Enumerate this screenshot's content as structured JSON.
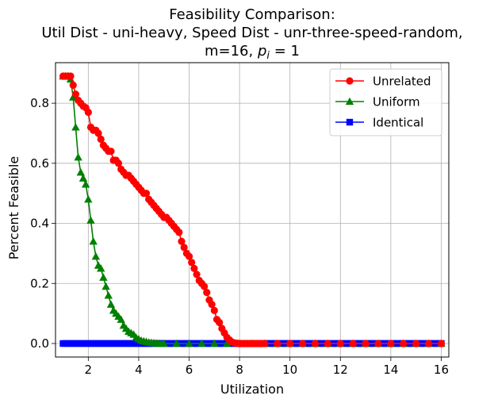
{
  "title_lines": [
    "Feasibility Comparison:",
    "Util Dist - uni-heavy, Speed Dist - unr-three-speed-random,",
    "m=16, "
  ],
  "title_pi_symbol": "p",
  "title_pi_subscript": "i",
  "title_pi_tail": " = 1",
  "chart_data": {
    "type": "line",
    "xlabel": "Utilization",
    "ylabel": "Percent Feasible",
    "xlim": [
      0.7,
      16.3
    ],
    "ylim": [
      -0.045,
      0.935
    ],
    "xticks": [
      2,
      4,
      6,
      8,
      10,
      12,
      14,
      16
    ],
    "xtick_labels": [
      "2",
      "4",
      "6",
      "8",
      "10",
      "12",
      "14",
      "16"
    ],
    "yticks": [
      0.0,
      0.2,
      0.4,
      0.6,
      0.8
    ],
    "ytick_labels": [
      "0.0",
      "0.2",
      "0.4",
      "0.6",
      "0.8"
    ],
    "grid": true,
    "legend_position": "upper right",
    "series": [
      {
        "name": "Unrelated",
        "color": "#ff0000",
        "marker": "circle",
        "x": [
          1.0,
          1.1,
          1.2,
          1.3,
          1.4,
          1.5,
          1.6,
          1.7,
          1.8,
          1.9,
          2.0,
          2.1,
          2.2,
          2.3,
          2.4,
          2.5,
          2.6,
          2.7,
          2.8,
          2.9,
          3.0,
          3.1,
          3.2,
          3.3,
          3.4,
          3.5,
          3.6,
          3.7,
          3.8,
          3.9,
          4.0,
          4.1,
          4.2,
          4.3,
          4.4,
          4.5,
          4.6,
          4.7,
          4.8,
          4.9,
          5.0,
          5.1,
          5.2,
          5.3,
          5.4,
          5.5,
          5.6,
          5.7,
          5.8,
          5.9,
          6.0,
          6.1,
          6.2,
          6.3,
          6.4,
          6.5,
          6.6,
          6.7,
          6.8,
          6.9,
          7.0,
          7.1,
          7.2,
          7.3,
          7.4,
          7.5,
          7.6,
          7.7,
          7.8,
          7.9,
          8.0,
          8.1,
          8.2,
          8.3,
          8.4,
          8.5,
          8.6,
          8.7,
          8.8,
          8.9,
          9.0,
          9.5,
          10.0,
          10.5,
          11.0,
          11.5,
          12.0,
          12.5,
          13.0,
          13.5,
          14.0,
          14.5,
          15.0,
          15.5,
          16.0
        ],
        "y": [
          0.89,
          0.89,
          0.89,
          0.89,
          0.86,
          0.83,
          0.81,
          0.8,
          0.79,
          0.785,
          0.77,
          0.72,
          0.71,
          0.71,
          0.7,
          0.68,
          0.66,
          0.65,
          0.64,
          0.64,
          0.61,
          0.61,
          0.6,
          0.58,
          0.57,
          0.56,
          0.56,
          0.55,
          0.54,
          0.53,
          0.52,
          0.51,
          0.5,
          0.5,
          0.48,
          0.47,
          0.46,
          0.45,
          0.44,
          0.43,
          0.42,
          0.42,
          0.41,
          0.4,
          0.39,
          0.38,
          0.37,
          0.34,
          0.32,
          0.3,
          0.29,
          0.27,
          0.25,
          0.23,
          0.21,
          0.2,
          0.19,
          0.17,
          0.145,
          0.13,
          0.11,
          0.08,
          0.07,
          0.05,
          0.035,
          0.02,
          0.012,
          0.005,
          0.002,
          0.001,
          0.0,
          0.0,
          0.0,
          0.0,
          0.0,
          0.0,
          0.0,
          0.0,
          0.0,
          0.0,
          0.0,
          0.0,
          0.0,
          0.0,
          0.0,
          0.0,
          0.0,
          0.0,
          0.0,
          0.0,
          0.0,
          0.0,
          0.0,
          0.0,
          0.0
        ]
      },
      {
        "name": "Uniform",
        "color": "#008000",
        "marker": "triangle",
        "x": [
          1.0,
          1.1,
          1.2,
          1.3,
          1.4,
          1.5,
          1.6,
          1.7,
          1.8,
          1.9,
          2.0,
          2.1,
          2.2,
          2.3,
          2.4,
          2.5,
          2.6,
          2.7,
          2.8,
          2.9,
          3.0,
          3.1,
          3.2,
          3.3,
          3.4,
          3.5,
          3.6,
          3.7,
          3.8,
          3.9,
          4.0,
          4.1,
          4.2,
          4.3,
          4.4,
          4.5,
          4.6,
          4.7,
          4.8,
          4.9,
          5.0,
          5.5,
          6.0,
          6.5,
          7.0,
          7.5,
          8.0,
          8.5,
          9.0,
          9.5,
          10.0,
          10.5,
          11.0,
          11.5,
          12.0,
          12.5,
          13.0,
          13.5,
          14.0,
          14.5,
          15.0,
          15.5,
          16.0
        ],
        "y": [
          0.89,
          0.89,
          0.89,
          0.88,
          0.82,
          0.72,
          0.62,
          0.57,
          0.55,
          0.53,
          0.48,
          0.41,
          0.34,
          0.29,
          0.26,
          0.25,
          0.22,
          0.19,
          0.16,
          0.13,
          0.11,
          0.1,
          0.09,
          0.08,
          0.06,
          0.05,
          0.04,
          0.035,
          0.03,
          0.02,
          0.015,
          0.01,
          0.008,
          0.006,
          0.004,
          0.003,
          0.002,
          0.001,
          0.0,
          0.0,
          0.0,
          0.0,
          0.0,
          0.0,
          0.0,
          0.0,
          0.0,
          0.0,
          0.0,
          0.0,
          0.0,
          0.0,
          0.0,
          0.0,
          0.0,
          0.0,
          0.0,
          0.0,
          0.0,
          0.0,
          0.0,
          0.0,
          0.0
        ]
      },
      {
        "name": "Identical",
        "color": "#0000ff",
        "marker": "square",
        "x": [
          1.0,
          1.1,
          1.2,
          1.3,
          1.4,
          1.5,
          1.6,
          1.7,
          1.8,
          1.9,
          2.0,
          2.1,
          2.2,
          2.3,
          2.4,
          2.5,
          2.6,
          2.7,
          2.8,
          2.9,
          3.0,
          3.1,
          3.2,
          3.3,
          3.4,
          3.5,
          3.6,
          3.7,
          3.8,
          3.9,
          4.0,
          4.1,
          4.2,
          4.3,
          4.4,
          4.5,
          4.6,
          4.7,
          4.8,
          4.9,
          5.0,
          5.1,
          5.2,
          5.3,
          5.4,
          5.5,
          5.6,
          5.7,
          5.8,
          5.9,
          6.0,
          6.1,
          6.2,
          6.3,
          6.4,
          6.5,
          6.6,
          6.7,
          6.8,
          6.9,
          7.0,
          7.1,
          7.2,
          7.3,
          7.4,
          7.5,
          7.6,
          7.7,
          7.8,
          7.9,
          8.0,
          8.1,
          8.2,
          8.3,
          8.4,
          8.5,
          8.6,
          8.7,
          8.8,
          8.9,
          9.0,
          9.1,
          9.2,
          9.3,
          9.4,
          9.5,
          9.6,
          9.7,
          9.8,
          9.9,
          10.0,
          10.1,
          10.2,
          10.3,
          10.4,
          10.5,
          10.6,
          10.7,
          10.8,
          10.9,
          11.0,
          11.1,
          11.2,
          11.3,
          11.4,
          11.5,
          11.6,
          11.7,
          11.8,
          11.9,
          12.0,
          12.1,
          12.2,
          12.3,
          12.4,
          12.5,
          12.6,
          12.7,
          12.8,
          12.9,
          13.0,
          13.1,
          13.2,
          13.3,
          13.4,
          13.5,
          13.6,
          13.7,
          13.8,
          13.9,
          14.0,
          14.1,
          14.2,
          14.3,
          14.4,
          14.5,
          14.6,
          14.7,
          14.8,
          14.9,
          15.0,
          15.1,
          15.2,
          15.3,
          15.4,
          15.5,
          15.6,
          15.7,
          15.8,
          15.9,
          16.0
        ],
        "y_constant": 0.0
      }
    ]
  }
}
